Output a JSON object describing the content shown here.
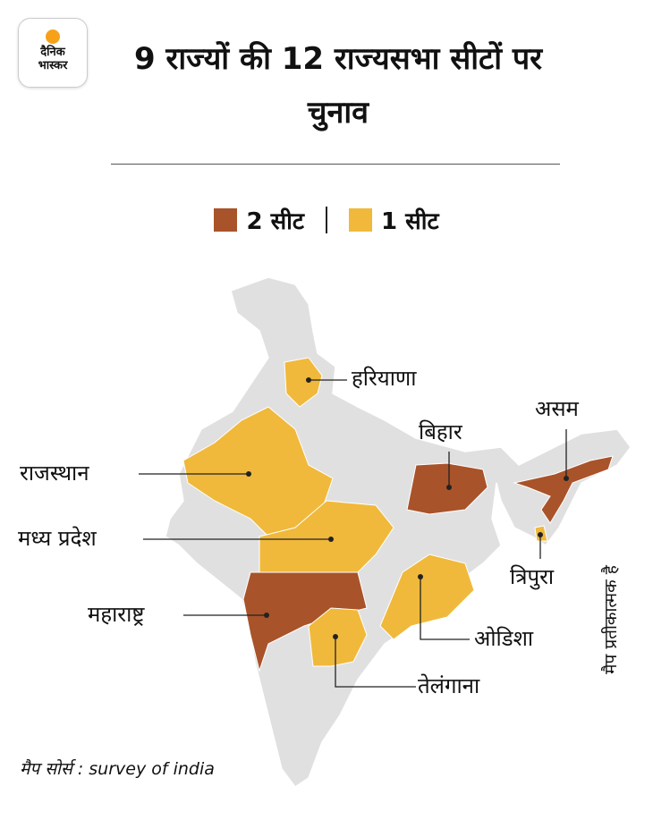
{
  "logo": {
    "line1": "दैनिक",
    "line2": "भास्कर"
  },
  "title": "9 राज्यों की 12 राज्यसभा सीटों पर चुनाव",
  "legend": [
    {
      "label": "2 सीट",
      "color": "#a9532a"
    },
    {
      "label": "1 सीट",
      "color": "#f0b93b"
    }
  ],
  "colors": {
    "other": "#e0e0e0",
    "two_seats": "#a9532a",
    "one_seat": "#f0b93b"
  },
  "states": {
    "haryana": {
      "label": "हरियाणा",
      "seats": 1
    },
    "rajasthan": {
      "label": "राजस्थान",
      "seats": 1
    },
    "madhya_pradesh": {
      "label": "मध्य प्रदेश",
      "seats": 1
    },
    "maharashtra": {
      "label": "महाराष्ट्र",
      "seats": 2
    },
    "telangana": {
      "label": "तेलंगाना",
      "seats": 1
    },
    "odisha": {
      "label": "ओडिशा",
      "seats": 1
    },
    "bihar": {
      "label": "बिहार",
      "seats": 2
    },
    "assam": {
      "label": "असम",
      "seats": 2
    },
    "tripura": {
      "label": "त्रिपुरा",
      "seats": 1
    }
  },
  "note": "मैप प्रतीकात्मक है",
  "source": "मैप सोर्स : survey of india"
}
